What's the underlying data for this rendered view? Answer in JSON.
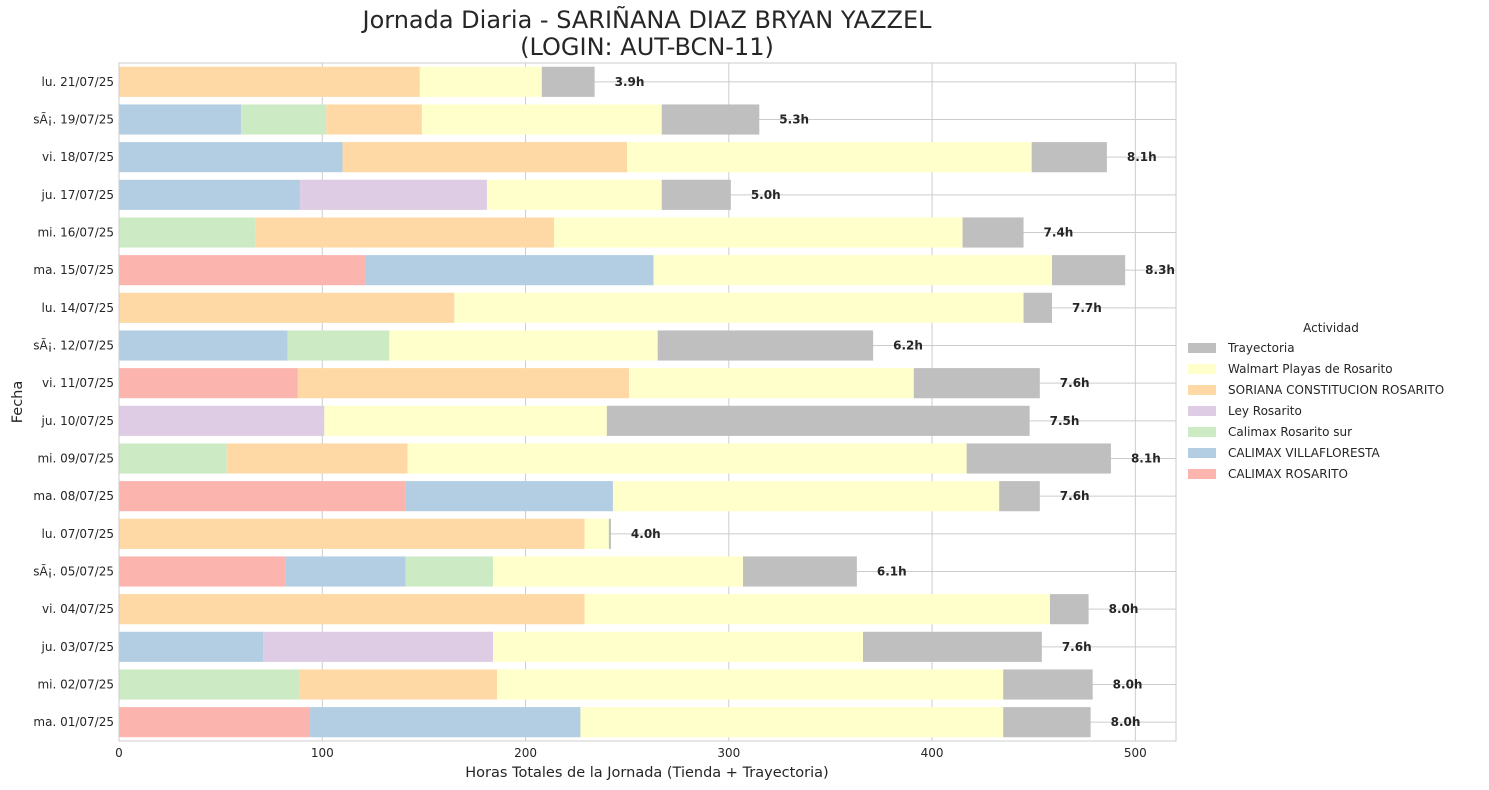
{
  "chart_data": {
    "type": "bar",
    "orientation": "horizontal",
    "stacked": true,
    "title": "Jornada Diaria - SARIÑANA DIAZ BRYAN YAZZEL",
    "subtitle": "(LOGIN: AUT-BCN-11)",
    "xlabel": "Horas Totales de la Jornada (Tienda + Trayectoria)",
    "ylabel": "Fecha",
    "xlim": [
      0,
      520
    ],
    "xticks": [
      0,
      100,
      200,
      300,
      400,
      500
    ],
    "grid": true,
    "legend": {
      "title": "Actividad",
      "placement": "right",
      "entries": [
        {
          "name": "Trayectoria",
          "color": "#bfbfbf"
        },
        {
          "name": "Walmart Playas de Rosarito",
          "color": "#ffffcc"
        },
        {
          "name": "SORIANA CONSTITUCION ROSARITO",
          "color": "#fed9a6"
        },
        {
          "name": "Ley Rosarito",
          "color": "#decbe4"
        },
        {
          "name": "Calimax Rosarito sur",
          "color": "#ccebc5"
        },
        {
          "name": "CALIMAX VILLAFLORESTA",
          "color": "#b3cde3"
        },
        {
          "name": "CALIMAX ROSARITO",
          "color": "#fbb4ae"
        }
      ]
    },
    "stack_order": [
      "CALIMAX ROSARITO",
      "CALIMAX VILLAFLORESTA",
      "Calimax Rosarito sur",
      "Ley Rosarito",
      "SORIANA CONSTITUCION ROSARITO",
      "Walmart Playas de Rosarito",
      "Trayectoria"
    ],
    "rows": [
      {
        "label": "lu. 21/07/25",
        "total_label": "3.9h",
        "segments": {
          "SORIANA CONSTITUCION ROSARITO": 148,
          "Walmart Playas de Rosarito": 60,
          "Trayectoria": 26
        }
      },
      {
        "label": "sÃ¡. 19/07/25",
        "total_label": "5.3h",
        "segments": {
          "CALIMAX VILLAFLORESTA": 60,
          "Calimax Rosarito sur": 42,
          "SORIANA CONSTITUCION ROSARITO": 47,
          "Walmart Playas de Rosarito": 118,
          "Trayectoria": 48
        }
      },
      {
        "label": "vi. 18/07/25",
        "total_label": "8.1h",
        "segments": {
          "CALIMAX VILLAFLORESTA": 110,
          "SORIANA CONSTITUCION ROSARITO": 140,
          "Walmart Playas de Rosarito": 199,
          "Trayectoria": 37
        }
      },
      {
        "label": "ju. 17/07/25",
        "total_label": "5.0h",
        "segments": {
          "CALIMAX VILLAFLORESTA": 89,
          "Ley Rosarito": 92,
          "Walmart Playas de Rosarito": 86,
          "Trayectoria": 34
        }
      },
      {
        "label": "mi. 16/07/25",
        "total_label": "7.4h",
        "segments": {
          "Calimax Rosarito sur": 67,
          "SORIANA CONSTITUCION ROSARITO": 147,
          "Walmart Playas de Rosarito": 201,
          "Trayectoria": 30
        }
      },
      {
        "label": "ma. 15/07/25",
        "total_label": "8.3h",
        "segments": {
          "CALIMAX ROSARITO": 121,
          "CALIMAX VILLAFLORESTA": 142,
          "Walmart Playas de Rosarito": 196,
          "Trayectoria": 36
        }
      },
      {
        "label": "lu. 14/07/25",
        "total_label": "7.7h",
        "segments": {
          "SORIANA CONSTITUCION ROSARITO": 165,
          "Walmart Playas de Rosarito": 280,
          "Trayectoria": 14
        }
      },
      {
        "label": "sÃ¡. 12/07/25",
        "total_label": "6.2h",
        "segments": {
          "CALIMAX VILLAFLORESTA": 83,
          "Calimax Rosarito sur": 50,
          "Walmart Playas de Rosarito": 132,
          "Trayectoria": 106
        }
      },
      {
        "label": "vi. 11/07/25",
        "total_label": "7.6h",
        "segments": {
          "CALIMAX ROSARITO": 88,
          "SORIANA CONSTITUCION ROSARITO": 163,
          "Walmart Playas de Rosarito": 140,
          "Trayectoria": 62
        }
      },
      {
        "label": "ju. 10/07/25",
        "total_label": "7.5h",
        "segments": {
          "Ley Rosarito": 101,
          "Walmart Playas de Rosarito": 139,
          "Trayectoria": 208
        }
      },
      {
        "label": "mi. 09/07/25",
        "total_label": "8.1h",
        "segments": {
          "Calimax Rosarito sur": 53,
          "SORIANA CONSTITUCION ROSARITO": 89,
          "Walmart Playas de Rosarito": 275,
          "Trayectoria": 71
        }
      },
      {
        "label": "ma. 08/07/25",
        "total_label": "7.6h",
        "segments": {
          "CALIMAX ROSARITO": 141,
          "CALIMAX VILLAFLORESTA": 102,
          "Walmart Playas de Rosarito": 190,
          "Trayectoria": 20
        }
      },
      {
        "label": "lu. 07/07/25",
        "total_label": "4.0h",
        "segments": {
          "SORIANA CONSTITUCION ROSARITO": 229,
          "Walmart Playas de Rosarito": 12,
          "Trayectoria": 1
        }
      },
      {
        "label": "sÃ¡. 05/07/25",
        "total_label": "6.1h",
        "segments": {
          "CALIMAX ROSARITO": 82,
          "CALIMAX VILLAFLORESTA": 59,
          "Calimax Rosarito sur": 43,
          "Walmart Playas de Rosarito": 123,
          "Trayectoria": 56
        }
      },
      {
        "label": "vi. 04/07/25",
        "total_label": "8.0h",
        "segments": {
          "SORIANA CONSTITUCION ROSARITO": 229,
          "Walmart Playas de Rosarito": 229,
          "Trayectoria": 19
        }
      },
      {
        "label": "ju. 03/07/25",
        "total_label": "7.6h",
        "segments": {
          "CALIMAX VILLAFLORESTA": 71,
          "Ley Rosarito": 113,
          "Walmart Playas de Rosarito": 182,
          "Trayectoria": 88
        }
      },
      {
        "label": "mi. 02/07/25",
        "total_label": "8.0h",
        "segments": {
          "Calimax Rosarito sur": 89,
          "SORIANA CONSTITUCION ROSARITO": 97,
          "Walmart Playas de Rosarito": 249,
          "Trayectoria": 44
        }
      },
      {
        "label": "ma. 01/07/25",
        "total_label": "8.0h",
        "segments": {
          "CALIMAX ROSARITO": 94,
          "CALIMAX VILLAFLORESTA": 133,
          "Walmart Playas de Rosarito": 208,
          "Trayectoria": 43
        }
      }
    ]
  }
}
